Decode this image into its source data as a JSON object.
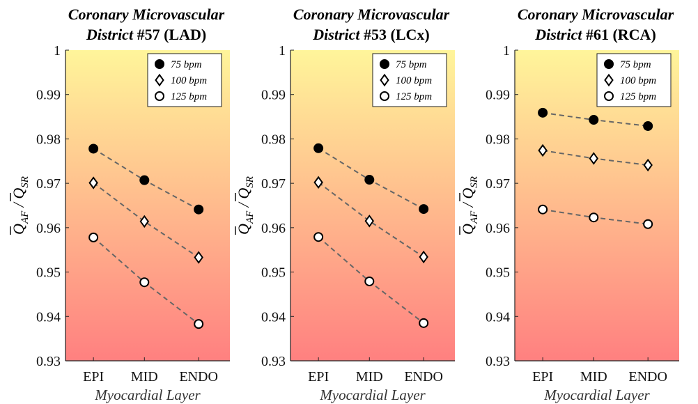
{
  "chart_data": [
    {
      "type": "line",
      "title_main": "Coronary Microvascular",
      "title_sub_italic": "District",
      "title_sub_plain": "#57 (LAD)",
      "xlabel": "Myocardial Layer",
      "ylabel": "Q̄AF / Q̄SR",
      "ylim": [
        0.93,
        1.0
      ],
      "yticks": [
        "0.93",
        "0.94",
        "0.95",
        "0.96",
        "0.97",
        "0.98",
        "0.99",
        "1"
      ],
      "categories": [
        "EPI",
        "MID",
        "ENDO"
      ],
      "legend_position": "top-right",
      "background_gradient": {
        "top": "#fff59a",
        "bottom": "#ff8080"
      },
      "series": [
        {
          "name": "75 bpm",
          "marker": "circle-filled",
          "values": [
            0.9778,
            0.9707,
            0.9641
          ]
        },
        {
          "name": "100 bpm",
          "marker": "diamond",
          "values": [
            0.9701,
            0.9614,
            0.9533
          ]
        },
        {
          "name": "125 bpm",
          "marker": "circle-open",
          "values": [
            0.9578,
            0.9477,
            0.9383
          ]
        }
      ]
    },
    {
      "type": "line",
      "title_main": "Coronary Microvascular",
      "title_sub_italic": "District",
      "title_sub_plain": "#53 (LCx)",
      "xlabel": "Myocardial Layer",
      "ylabel": "Q̄AF / Q̄SR",
      "ylim": [
        0.93,
        1.0
      ],
      "yticks": [
        "0.93",
        "0.94",
        "0.95",
        "0.96",
        "0.97",
        "0.98",
        "0.99",
        "1"
      ],
      "categories": [
        "EPI",
        "MID",
        "ENDO"
      ],
      "legend_position": "top-right",
      "background_gradient": {
        "top": "#fff59a",
        "bottom": "#ff8080"
      },
      "series": [
        {
          "name": "75 bpm",
          "marker": "circle-filled",
          "values": [
            0.9779,
            0.9708,
            0.9642
          ]
        },
        {
          "name": "100 bpm",
          "marker": "diamond",
          "values": [
            0.9702,
            0.9615,
            0.9534
          ]
        },
        {
          "name": "125 bpm",
          "marker": "circle-open",
          "values": [
            0.9579,
            0.9479,
            0.9385
          ]
        }
      ]
    },
    {
      "type": "line",
      "title_main": "Coronary Microvascular",
      "title_sub_italic": "District",
      "title_sub_plain": "#61 (RCA)",
      "xlabel": "Myocardial Layer",
      "ylabel": "Q̄AF / Q̄SR",
      "ylim": [
        0.93,
        1.0
      ],
      "yticks": [
        "0.93",
        "0.94",
        "0.95",
        "0.96",
        "0.97",
        "0.98",
        "0.99",
        "1"
      ],
      "categories": [
        "EPI",
        "MID",
        "ENDO"
      ],
      "legend_position": "top-right",
      "background_gradient": {
        "top": "#fff59a",
        "bottom": "#ff8080"
      },
      "series": [
        {
          "name": "75 bpm",
          "marker": "circle-filled",
          "values": [
            0.9859,
            0.9843,
            0.9829
          ]
        },
        {
          "name": "100 bpm",
          "marker": "diamond",
          "values": [
            0.9774,
            0.9756,
            0.9741
          ]
        },
        {
          "name": "125 bpm",
          "marker": "circle-open",
          "values": [
            0.9641,
            0.9623,
            0.9608
          ]
        }
      ]
    }
  ]
}
